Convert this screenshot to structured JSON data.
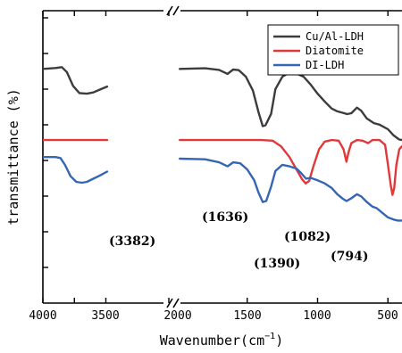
{
  "chart_data": {
    "type": "line",
    "xlabel": "Wavenumber(cm",
    "xlabel_sup": "−1",
    "xlabel_close": ")",
    "ylabel": "transmittance (%)",
    "x_segments": [
      {
        "range": [
          4000,
          2000
        ],
        "ticks": [
          4000,
          3500,
          3000
        ]
      },
      {
        "range": [
          2000,
          400
        ],
        "ticks": [
          2000,
          1500,
          1000,
          500
        ]
      }
    ],
    "tick_labels": [
      "4000",
      "3500",
      "2000",
      "1500",
      "1000",
      "500"
    ],
    "axis_break": true,
    "y_ticks_labeled": false,
    "legend": {
      "placement": "top-right",
      "entries": [
        "Cu/Al-LDH",
        "Diatomite",
        "DI-LDH"
      ]
    },
    "colors": {
      "Cu/Al-LDH": "#3c3c3c",
      "Diatomite": "#e0393b",
      "DI-LDH": "#3566b5"
    },
    "annotations": [
      {
        "text": "(3382)",
        "x": 3382,
        "series": "DI-LDH"
      },
      {
        "text": "(1636)",
        "x": 1636,
        "series": "DI-LDH"
      },
      {
        "text": "(1390)",
        "x": 1390,
        "series": "DI-LDH"
      },
      {
        "text": "(1082)",
        "x": 1082,
        "series": "DI-LDH"
      },
      {
        "text": "(794)",
        "x": 794,
        "series": "DI-LDH"
      }
    ],
    "series": [
      {
        "name": "Cu/Al-LDH",
        "points": [
          [
            4000,
            78
          ],
          [
            3800,
            78.3
          ],
          [
            3700,
            78.6
          ],
          [
            3620,
            77
          ],
          [
            3520,
            72.5
          ],
          [
            3420,
            70.2
          ],
          [
            3300,
            70
          ],
          [
            3200,
            70.4
          ],
          [
            3100,
            71.3
          ],
          [
            2980,
            72.3
          ],
          [
            1980,
            78
          ],
          [
            1800,
            78.2
          ],
          [
            1700,
            77.7
          ],
          [
            1640,
            76.4
          ],
          [
            1600,
            77.8
          ],
          [
            1560,
            77.6
          ],
          [
            1510,
            75.5
          ],
          [
            1460,
            71
          ],
          [
            1420,
            64
          ],
          [
            1390,
            59.5
          ],
          [
            1370,
            59.8
          ],
          [
            1330,
            63.5
          ],
          [
            1300,
            71.5
          ],
          [
            1250,
            75.5
          ],
          [
            1200,
            76.8
          ],
          [
            1150,
            76.5
          ],
          [
            1100,
            75.5
          ],
          [
            1050,
            73
          ],
          [
            1000,
            70
          ],
          [
            950,
            67.5
          ],
          [
            900,
            65.2
          ],
          [
            860,
            64.3
          ],
          [
            820,
            63.8
          ],
          [
            790,
            63.4
          ],
          [
            760,
            63.7
          ],
          [
            720,
            65.5
          ],
          [
            690,
            64.5
          ],
          [
            650,
            62
          ],
          [
            600,
            60.5
          ],
          [
            560,
            60
          ],
          [
            500,
            58.5
          ],
          [
            460,
            56.5
          ],
          [
            420,
            55.2
          ],
          [
            400,
            55
          ]
        ]
      },
      {
        "name": "Diatomite",
        "points": [
          [
            4000,
            55
          ],
          [
            3500,
            55
          ],
          [
            3000,
            55
          ],
          [
            2980,
            55
          ],
          [
            1980,
            55
          ],
          [
            1600,
            55
          ],
          [
            1400,
            55
          ],
          [
            1320,
            54.8
          ],
          [
            1260,
            53
          ],
          [
            1200,
            49.5
          ],
          [
            1150,
            45.5
          ],
          [
            1110,
            42.3
          ],
          [
            1085,
            41
          ],
          [
            1060,
            41.8
          ],
          [
            1030,
            46.5
          ],
          [
            990,
            52
          ],
          [
            950,
            54.5
          ],
          [
            900,
            55
          ],
          [
            850,
            54.8
          ],
          [
            815,
            52
          ],
          [
            795,
            48
          ],
          [
            780,
            51
          ],
          [
            760,
            54
          ],
          [
            720,
            55
          ],
          [
            680,
            54.8
          ],
          [
            640,
            54
          ],
          [
            610,
            55
          ],
          [
            560,
            55
          ],
          [
            520,
            53.5
          ],
          [
            500,
            47
          ],
          [
            480,
            40.5
          ],
          [
            468,
            37.3
          ],
          [
            455,
            39.5
          ],
          [
            440,
            47
          ],
          [
            420,
            52
          ],
          [
            400,
            53
          ]
        ]
      },
      {
        "name": "DI-LDH",
        "points": [
          [
            4000,
            49.5
          ],
          [
            3800,
            49.5
          ],
          [
            3720,
            49.2
          ],
          [
            3650,
            47
          ],
          [
            3560,
            43.3
          ],
          [
            3470,
            41.5
          ],
          [
            3380,
            41.2
          ],
          [
            3300,
            41.5
          ],
          [
            3200,
            42.5
          ],
          [
            3100,
            43.5
          ],
          [
            2980,
            44.8
          ],
          [
            1980,
            49
          ],
          [
            1800,
            48.8
          ],
          [
            1700,
            47.8
          ],
          [
            1640,
            46.5
          ],
          [
            1600,
            47.8
          ],
          [
            1550,
            47.5
          ],
          [
            1500,
            45.5
          ],
          [
            1450,
            42
          ],
          [
            1420,
            38
          ],
          [
            1390,
            35
          ],
          [
            1365,
            35.3
          ],
          [
            1330,
            40
          ],
          [
            1300,
            45
          ],
          [
            1250,
            47
          ],
          [
            1200,
            46.5
          ],
          [
            1150,
            45.8
          ],
          [
            1120,
            44.5
          ],
          [
            1082,
            42.5
          ],
          [
            1050,
            42.8
          ],
          [
            1000,
            42
          ],
          [
            950,
            41
          ],
          [
            900,
            39.5
          ],
          [
            860,
            37.5
          ],
          [
            820,
            36
          ],
          [
            794,
            35.3
          ],
          [
            760,
            36.2
          ],
          [
            720,
            37.5
          ],
          [
            690,
            36.8
          ],
          [
            650,
            35
          ],
          [
            610,
            33.5
          ],
          [
            580,
            33
          ],
          [
            540,
            31.5
          ],
          [
            500,
            30
          ],
          [
            460,
            29.3
          ],
          [
            430,
            29
          ],
          [
            400,
            29
          ]
        ]
      }
    ]
  }
}
